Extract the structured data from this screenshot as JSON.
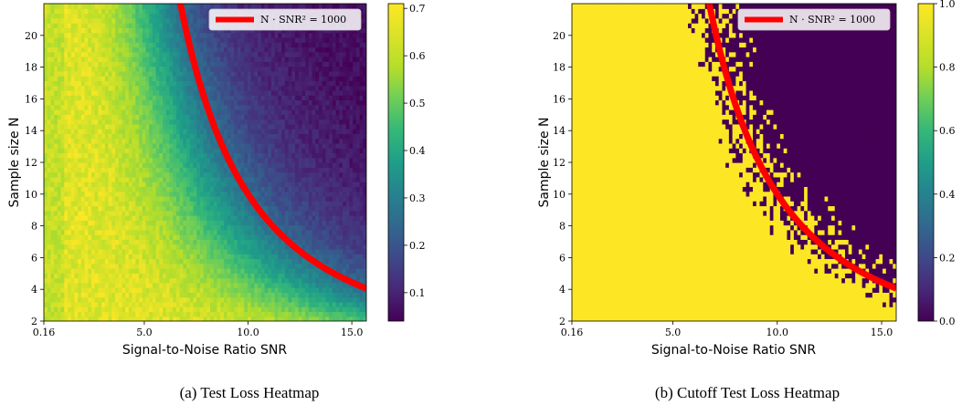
{
  "figure": {
    "panels": [
      {
        "caption": "(a) Test Loss Heatmap"
      },
      {
        "caption": "(b) Cutoff Test Loss Heatmap"
      }
    ]
  },
  "chart_data": [
    {
      "type": "heatmap",
      "title": "",
      "caption": "(a) Test Loss Heatmap",
      "xlabel": "Signal-to-Noise Ratio SNR",
      "ylabel": "Sample size N",
      "xlim": [
        0.16,
        15.7
      ],
      "ylim": [
        2,
        22
      ],
      "x_ticks": [
        0.16,
        5.0,
        10.0,
        15.0
      ],
      "x_tick_labels": [
        "0.16",
        "5.0",
        "10.0",
        "15.0"
      ],
      "y_ticks": [
        2,
        4,
        6,
        8,
        10,
        12,
        14,
        16,
        18,
        20
      ],
      "y_tick_labels": [
        "2",
        "4",
        "6",
        "8",
        "10",
        "12",
        "14",
        "16",
        "18",
        "20"
      ],
      "colormap": "viridis",
      "colorbar": {
        "range": [
          0.04,
          0.71
        ],
        "ticks": [
          0.1,
          0.2,
          0.3,
          0.4,
          0.5,
          0.6,
          0.7
        ],
        "tick_labels": [
          "0.1",
          "0.2",
          "0.3",
          "0.4",
          "0.5",
          "0.6",
          "0.7"
        ]
      },
      "curve": {
        "label": "N · SNR² = 1000",
        "color": "#ff0000",
        "equation": "N = 1000 / SNR^2"
      },
      "legend_position": "top-right",
      "value_model": {
        "description": "high loss (~0.68) below the curve, decreasing to ~0.05 above it",
        "high": 0.68,
        "low": 0.05
      }
    },
    {
      "type": "heatmap",
      "title": "",
      "caption": "(b) Cutoff Test Loss Heatmap",
      "xlabel": "Signal-to-Noise Ratio SNR",
      "ylabel": "Sample size N",
      "xlim": [
        0.16,
        15.7
      ],
      "ylim": [
        2,
        22
      ],
      "x_ticks": [
        0.16,
        5.0,
        10.0,
        15.0
      ],
      "x_tick_labels": [
        "0.16",
        "5.0",
        "10.0",
        "15.0"
      ],
      "y_ticks": [
        2,
        4,
        6,
        8,
        10,
        12,
        14,
        16,
        18,
        20
      ],
      "y_tick_labels": [
        "2",
        "4",
        "6",
        "8",
        "10",
        "12",
        "14",
        "16",
        "18",
        "20"
      ],
      "colormap": "viridis",
      "colorbar": {
        "range": [
          0.0,
          1.0
        ],
        "ticks": [
          0.0,
          0.2,
          0.4,
          0.6,
          0.8,
          1.0
        ],
        "tick_labels": [
          "0.0",
          "0.2",
          "0.4",
          "0.6",
          "0.8",
          "1.0"
        ]
      },
      "curve": {
        "label": "N · SNR² = 1000",
        "color": "#ff0000",
        "equation": "N = 1000 / SNR^2"
      },
      "legend_position": "top-right",
      "value_model": {
        "description": "binary: 1.0 below the curve (yellow), 0.0 above (dark purple)",
        "high": 1.0,
        "low": 0.0
      }
    }
  ]
}
